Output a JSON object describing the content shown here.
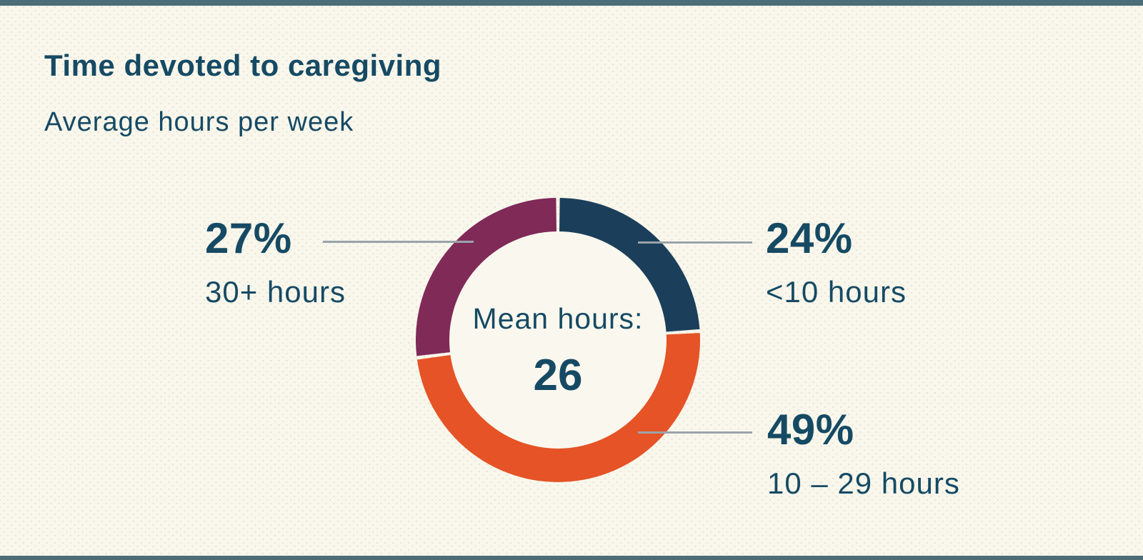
{
  "header": {
    "title": "Time devoted to caregiving",
    "subtitle": "Average hours per week"
  },
  "chart_data": {
    "type": "pie",
    "variant": "donut",
    "title": "Time devoted to caregiving",
    "subtitle": "Average hours per week",
    "center_label": "Mean hours:",
    "center_value": "26",
    "start_angle_deg": 0,
    "direction": "clockwise",
    "gap_deg": 1.5,
    "legend_position": "callouts left and right with leader lines",
    "segments": [
      {
        "label": "<10 hours",
        "value_label": "24%",
        "pct": 24,
        "color": "#1b3f5a"
      },
      {
        "label": "10 – 29 hours",
        "value_label": "49%",
        "pct": 49,
        "color": "#e55326"
      },
      {
        "label": "30+ hours",
        "value_label": "27%",
        "pct": 27,
        "color": "#802a58"
      }
    ]
  },
  "colors": {
    "background": "#f9f7ec",
    "background_dot": "#e8e4d5",
    "accent_bar": "#4d6d79",
    "text_navy": "#164a64",
    "leader_line": "#9ba3aa",
    "donut_hole": "#faf8ee"
  }
}
